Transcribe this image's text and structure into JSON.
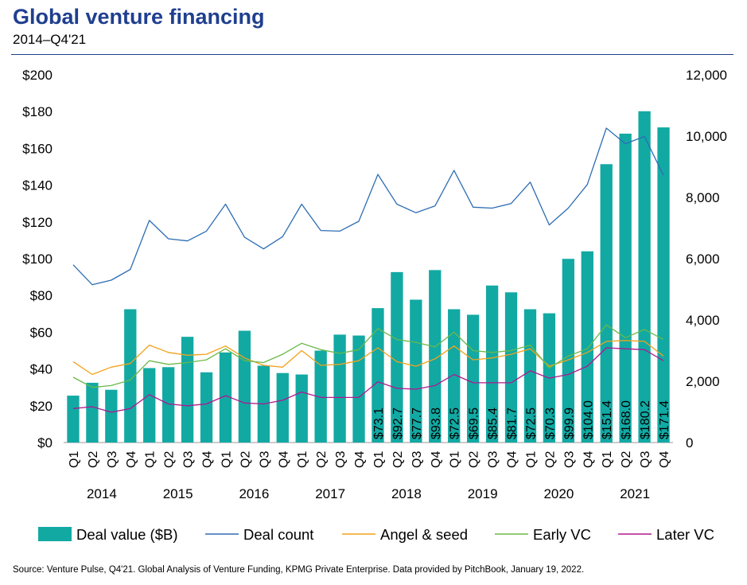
{
  "header": {
    "title": "Global venture financing",
    "subtitle": "2014–Q4'21"
  },
  "footer": {
    "source": "Source: Venture Pulse, Q4'21. Global Analysis of Venture Funding, KPMG Private Enterprise. Data provided by PitchBook, January 19, 2022."
  },
  "colors": {
    "title": "#1f3f8f",
    "bars": "#12a9a3",
    "deal_count": "#2e6db4",
    "angel_seed": "#f2a21b",
    "early_vc": "#6ab84a",
    "later_vc": "#b0188f"
  },
  "chart_data": {
    "type": "bar",
    "quarters": [
      "Q1",
      "Q2",
      "Q3",
      "Q4",
      "Q1",
      "Q2",
      "Q3",
      "Q4",
      "Q1",
      "Q2",
      "Q3",
      "Q4",
      "Q1",
      "Q2",
      "Q3",
      "Q4",
      "Q1",
      "Q2",
      "Q3",
      "Q4",
      "Q1",
      "Q2",
      "Q3",
      "Q4",
      "Q1",
      "Q2",
      "Q3",
      "Q4",
      "Q1",
      "Q2",
      "Q3",
      "Q4"
    ],
    "years": [
      "2014",
      "2015",
      "2016",
      "2017",
      "2018",
      "2019",
      "2020",
      "2021"
    ],
    "left_axis": {
      "ticks": [
        "$0",
        "$20",
        "$40",
        "$60",
        "$80",
        "$100",
        "$120",
        "$140",
        "$160",
        "$180",
        "$200"
      ],
      "ylim": [
        0,
        200
      ]
    },
    "right_axis": {
      "ticks": [
        "0",
        "2,000",
        "4,000",
        "6,000",
        "8,000",
        "10,000",
        "12,000"
      ],
      "ylim": [
        0,
        12000
      ]
    },
    "legend_position": "bottom",
    "series": [
      {
        "name": "Deal value ($B)",
        "type": "bar",
        "axis": "left",
        "values": [
          25.5,
          32.5,
          28.7,
          72.5,
          40.5,
          41.0,
          57.5,
          38.2,
          49.0,
          60.8,
          41.8,
          37.8,
          37.0,
          50.0,
          58.7,
          58.2,
          73.1,
          92.7,
          77.7,
          93.8,
          72.5,
          69.5,
          85.4,
          81.7,
          72.5,
          70.3,
          99.9,
          104.0,
          151.4,
          168.0,
          180.2,
          171.4
        ],
        "labels": [
          "",
          "",
          "",
          "",
          "",
          "",
          "",
          "",
          "",
          "",
          "",
          "",
          "",
          "",
          "",
          "",
          "$73.1",
          "$92.7",
          "$77.7",
          "$93.8",
          "$72.5",
          "$69.5",
          "$85.4",
          "$81.7",
          "$72.5",
          "$70.3",
          "$99.9",
          "$104.0",
          "$151.4",
          "$168.0",
          "$180.2",
          "$171.4"
        ]
      },
      {
        "name": "Deal count",
        "type": "line",
        "axis": "right",
        "values": [
          5800,
          5150,
          5300,
          5650,
          7250,
          6650,
          6580,
          6900,
          7780,
          6700,
          6320,
          6720,
          7780,
          6920,
          6900,
          7220,
          8750,
          7780,
          7500,
          7720,
          8880,
          7680,
          7650,
          7800,
          8500,
          7100,
          7650,
          8420,
          10260,
          9750,
          9990,
          8720
        ]
      },
      {
        "name": "Angel & seed",
        "type": "line",
        "axis": "left",
        "values": [
          44,
          37,
          41,
          43,
          53,
          49,
          47.5,
          48,
          52.5,
          46,
          42,
          41,
          50,
          42,
          42.5,
          44.5,
          51.5,
          44,
          41.5,
          45.5,
          52.5,
          45,
          46,
          48,
          51,
          41.5,
          45,
          49,
          55,
          55.5,
          55,
          47
        ]
      },
      {
        "name": "Early VC",
        "type": "line",
        "axis": "left",
        "values": [
          35.5,
          30,
          31,
          34,
          44.5,
          42.5,
          43.5,
          45,
          51,
          44.5,
          43.5,
          48,
          54,
          50.5,
          48.5,
          50.5,
          62,
          56,
          54.5,
          52,
          60,
          50,
          49,
          50,
          53,
          40.5,
          47,
          51,
          64,
          57,
          61.5,
          56
        ]
      },
      {
        "name": "Later VC",
        "type": "line",
        "axis": "left",
        "values": [
          18.5,
          19.5,
          16.5,
          18.5,
          26,
          21,
          20,
          21,
          25.5,
          21.5,
          21,
          23,
          27.5,
          24.5,
          24.5,
          24.5,
          33,
          29.5,
          29,
          31,
          37,
          32.5,
          32.5,
          32.5,
          39,
          35,
          37,
          41.5,
          51.5,
          51,
          50.5,
          44.5
        ]
      }
    ]
  }
}
